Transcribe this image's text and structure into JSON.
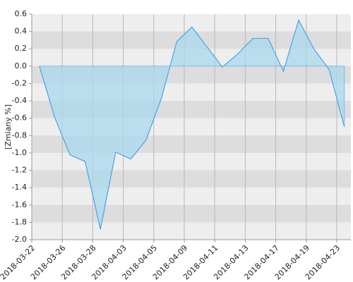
{
  "chart_data": {
    "type": "area",
    "y_label": "[Zmiany %]",
    "categories": [
      "2018-03-22",
      null,
      "2018-03-26",
      null,
      "2018-03-28",
      null,
      "2018-04-03",
      null,
      "2018-04-05",
      null,
      "2018-04-09",
      null,
      "2018-04-11",
      null,
      "2018-04-13",
      null,
      "2018-04-17",
      null,
      "2018-04-19",
      null,
      "2018-04-23"
    ],
    "values": [
      0.0,
      -0.59,
      -1.02,
      -1.1,
      -1.88,
      -0.99,
      -1.07,
      -0.85,
      -0.37,
      0.28,
      0.45,
      0.22,
      -0.01,
      0.14,
      0.32,
      0.32,
      -0.06,
      0.53,
      0.2,
      -0.04,
      -0.7
    ],
    "color": "#4aa3e8",
    "fill_color": "#a8d8ee",
    "ylim": [
      -2.0,
      0.6
    ],
    "yticks": [
      {
        "value": -2.0,
        "label": "-2.0"
      },
      -1.8,
      -1.6,
      -1.4,
      -1.2,
      {
        "value": -1.0,
        "label": "-1.0"
      },
      -0.8,
      -0.6,
      -0.4,
      -0.2,
      {
        "value": 0,
        "label": "0.0"
      },
      0.2,
      0.4,
      0.6
    ],
    "grid": true
  }
}
